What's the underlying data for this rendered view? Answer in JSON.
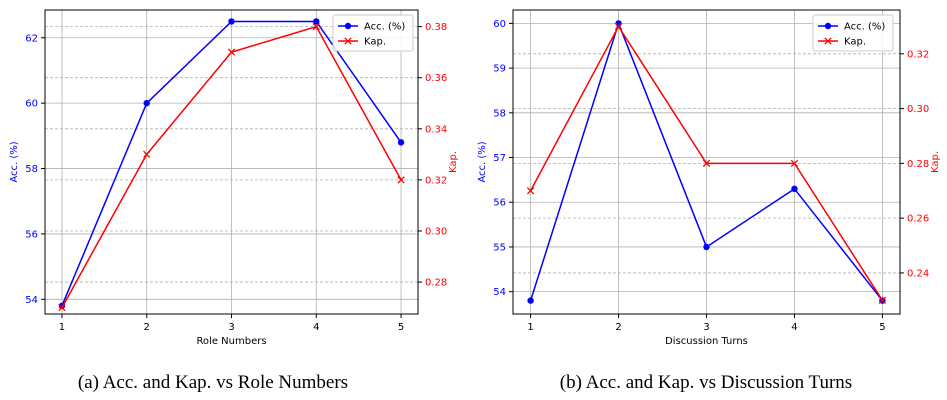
{
  "chart_data": [
    {
      "type": "line",
      "x": [
        1,
        2,
        3,
        4,
        5
      ],
      "xlabel": "Role Numbers",
      "ylabel": "Acc. (%)",
      "y2label": "Kap.",
      "xticks": [
        "1",
        "2",
        "3",
        "4",
        "5"
      ],
      "yticks": [
        "54",
        "56",
        "58",
        "60",
        "62"
      ],
      "y2ticks": [
        "0.28",
        "0.30",
        "0.32",
        "0.34",
        "0.36",
        "0.38"
      ],
      "ylim": [
        53.55,
        62.85
      ],
      "y2lim": [
        0.2675,
        0.3865
      ],
      "grid": true,
      "legend_position": "top-right",
      "series": [
        {
          "name": "Acc. (%)",
          "axis": "left",
          "color": "#0000ff",
          "marker": "circle",
          "values": [
            53.8,
            60.0,
            62.5,
            62.5,
            58.8
          ]
        },
        {
          "name": "Kap.",
          "axis": "right",
          "color": "#ff0000",
          "marker": "x",
          "values": [
            0.27,
            0.33,
            0.37,
            0.38,
            0.32
          ]
        }
      ],
      "caption": "(a) Acc. and Kap. vs Role Numbers"
    },
    {
      "type": "line",
      "x": [
        1,
        2,
        3,
        4,
        5
      ],
      "xlabel": "Discussion Turns",
      "ylabel": "Acc. (%)",
      "y2label": "Kap.",
      "xticks": [
        "1",
        "2",
        "3",
        "4",
        "5"
      ],
      "yticks": [
        "54",
        "55",
        "56",
        "57",
        "58",
        "59",
        "60"
      ],
      "y2ticks": [
        "0.24",
        "0.26",
        "0.28",
        "0.30",
        "0.32"
      ],
      "ylim": [
        53.5,
        60.3
      ],
      "y2lim": [
        0.225,
        0.336
      ],
      "grid": true,
      "legend_position": "top-right",
      "series": [
        {
          "name": "Acc. (%)",
          "axis": "left",
          "color": "#0000ff",
          "marker": "circle",
          "values": [
            53.8,
            60.0,
            55.0,
            56.3,
            53.8
          ]
        },
        {
          "name": "Kap.",
          "axis": "right",
          "color": "#ff0000",
          "marker": "x",
          "values": [
            0.27,
            0.33,
            0.28,
            0.28,
            0.23
          ]
        }
      ],
      "caption": "(b) Acc. and Kap. vs Discussion Turns"
    }
  ]
}
